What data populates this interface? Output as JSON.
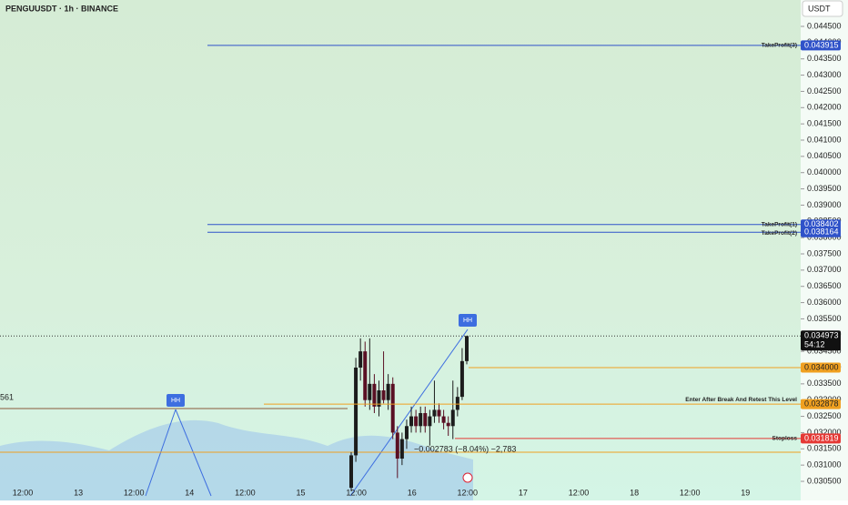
{
  "header": {
    "title": "PENGUUSDT · 1h · BINANCE",
    "currency": "USDT"
  },
  "price_axis": {
    "ylim": [
      0.0305,
      0.0445
    ],
    "ticks": [
      {
        "value": 0.0445,
        "label": "0.044500"
      },
      {
        "value": 0.044,
        "label": "0.044000"
      },
      {
        "value": 0.0435,
        "label": "0.043500"
      },
      {
        "value": 0.043,
        "label": "0.043000"
      },
      {
        "value": 0.0425,
        "label": "0.042500"
      },
      {
        "value": 0.042,
        "label": "0.042000"
      },
      {
        "value": 0.0415,
        "label": "0.041500"
      },
      {
        "value": 0.041,
        "label": "0.041000"
      },
      {
        "value": 0.0405,
        "label": "0.040500"
      },
      {
        "value": 0.04,
        "label": "0.040000"
      },
      {
        "value": 0.0395,
        "label": "0.039500"
      },
      {
        "value": 0.039,
        "label": "0.039000"
      },
      {
        "value": 0.0385,
        "label": "0.038500"
      },
      {
        "value": 0.038,
        "label": "0.038000"
      },
      {
        "value": 0.0375,
        "label": "0.037500"
      },
      {
        "value": 0.037,
        "label": "0.037000"
      },
      {
        "value": 0.0365,
        "label": "0.036500"
      },
      {
        "value": 0.036,
        "label": "0.036000"
      },
      {
        "value": 0.0355,
        "label": "0.035500"
      },
      {
        "value": 0.035,
        "label": "0.035000"
      },
      {
        "value": 0.0345,
        "label": "0.034500"
      },
      {
        "value": 0.034,
        "label": "0.034000"
      },
      {
        "value": 0.0335,
        "label": "0.033500"
      },
      {
        "value": 0.033,
        "label": "0.033000"
      },
      {
        "value": 0.0325,
        "label": "0.032500"
      },
      {
        "value": 0.032,
        "label": "0.032000"
      },
      {
        "value": 0.0315,
        "label": "0.031500"
      },
      {
        "value": 0.031,
        "label": "0.031000"
      },
      {
        "value": 0.0305,
        "label": "0.030500"
      }
    ]
  },
  "time_axis": [
    "12:00",
    "13",
    "12:00",
    "14",
    "12:00",
    "15",
    "12:00",
    "16",
    "12:00",
    "17",
    "12:00",
    "18",
    "12:00",
    "19"
  ],
  "levels": [
    {
      "text": "TakeProfit(3)",
      "price": 0.043915,
      "badge": "0.043915",
      "color": "#2f52c9"
    },
    {
      "text": "TakeProfit(1)",
      "price": 0.038402,
      "badge": "0.038402",
      "color": "#2f52c9"
    },
    {
      "text": "TakeProfit(2)",
      "price": 0.038164,
      "badge": "0.038164",
      "color": "#2f52c9"
    },
    {
      "price": 0.034,
      "badge": "0.034000",
      "color": "#f0a020"
    },
    {
      "text": "Enter After Break And Retest This Level",
      "price": 0.032878,
      "badge": "0.032878",
      "color": "#f0a020"
    },
    {
      "text": "Stoploss",
      "price": 0.031819,
      "badge": "0.031819",
      "color": "#e53935"
    }
  ],
  "current_price": {
    "price": 0.034973,
    "badge": "0.034973",
    "countdown": "54:12"
  },
  "annotations": {
    "hh": [
      "HH",
      "HH"
    ],
    "measure": "−0.002783 (−8.04%) −2,783",
    "left_level": "561"
  },
  "candles": [
    {
      "open": 0.0303,
      "high": 0.0314,
      "low": 0.0302,
      "close": 0.0313
    },
    {
      "open": 0.0313,
      "high": 0.0343,
      "low": 0.0311,
      "close": 0.034
    },
    {
      "open": 0.034,
      "high": 0.0349,
      "low": 0.0336,
      "close": 0.0345
    },
    {
      "open": 0.0345,
      "high": 0.0348,
      "low": 0.0328,
      "close": 0.033
    },
    {
      "open": 0.033,
      "high": 0.0349,
      "low": 0.0327,
      "close": 0.0335
    },
    {
      "open": 0.0335,
      "high": 0.0338,
      "low": 0.0326,
      "close": 0.0328
    },
    {
      "open": 0.0328,
      "high": 0.0336,
      "low": 0.0325,
      "close": 0.0333
    },
    {
      "open": 0.0333,
      "high": 0.0345,
      "low": 0.0329,
      "close": 0.033
    },
    {
      "open": 0.033,
      "high": 0.0338,
      "low": 0.0327,
      "close": 0.0335
    },
    {
      "open": 0.0335,
      "high": 0.0337,
      "low": 0.0318,
      "close": 0.032
    },
    {
      "open": 0.032,
      "high": 0.0322,
      "low": 0.0306,
      "close": 0.0312
    },
    {
      "open": 0.0312,
      "high": 0.032,
      "low": 0.031,
      "close": 0.0318
    },
    {
      "open": 0.0318,
      "high": 0.0324,
      "low": 0.0315,
      "close": 0.0322
    },
    {
      "open": 0.0322,
      "high": 0.0328,
      "low": 0.032,
      "close": 0.0325
    },
    {
      "open": 0.0325,
      "high": 0.0327,
      "low": 0.032,
      "close": 0.0322
    },
    {
      "open": 0.0322,
      "high": 0.0328,
      "low": 0.032,
      "close": 0.0326
    },
    {
      "open": 0.0326,
      "high": 0.0328,
      "low": 0.032,
      "close": 0.0322
    },
    {
      "open": 0.0322,
      "high": 0.0327,
      "low": 0.0316,
      "close": 0.0325
    },
    {
      "open": 0.0325,
      "high": 0.0336,
      "low": 0.0323,
      "close": 0.0327
    },
    {
      "open": 0.0327,
      "high": 0.0329,
      "low": 0.0323,
      "close": 0.0325
    },
    {
      "open": 0.0325,
      "high": 0.0327,
      "low": 0.0321,
      "close": 0.0323
    },
    {
      "open": 0.0323,
      "high": 0.0325,
      "low": 0.0319,
      "close": 0.0322
    },
    {
      "open": 0.0322,
      "high": 0.0336,
      "low": 0.0318,
      "close": 0.0327
    },
    {
      "open": 0.0327,
      "high": 0.0334,
      "low": 0.0325,
      "close": 0.0331
    },
    {
      "open": 0.0331,
      "high": 0.0346,
      "low": 0.033,
      "close": 0.0342
    },
    {
      "open": 0.0342,
      "high": 0.03497,
      "low": 0.0341,
      "close": 0.034973
    }
  ]
}
